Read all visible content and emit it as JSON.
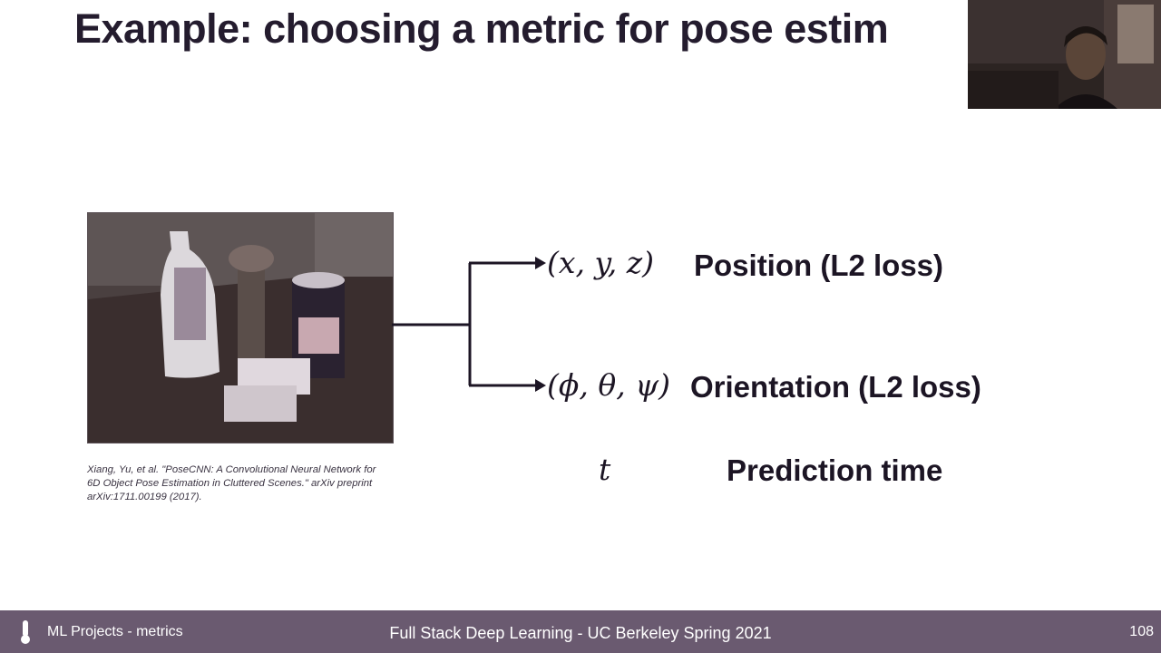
{
  "slide": {
    "title": "Example: choosing a metric for pose estim",
    "citation": "Xiang, Yu, et al. \"PoseCNN: A Convolutional Neural Network for 6D Object Pose Estimation in Cluttered Scenes.\" arXiv preprint arXiv:1711.00199 (2017).",
    "outputs": [
      {
        "math": "(x, y, z)",
        "label": "Position (L2 loss)"
      },
      {
        "math": "(ϕ, θ, ψ)",
        "label": "Orientation (L2 loss)"
      },
      {
        "math": "t",
        "label": "Prediction time"
      }
    ]
  },
  "footer": {
    "course_section": "ML Projects - metrics",
    "course_title": "Full Stack Deep Learning - UC Berkeley Spring 2021",
    "page_number": "108"
  },
  "colors": {
    "footer_bg": "#6a5a70",
    "text": "#1c1524"
  },
  "icons": {
    "footer_logo": "thermometer-icon"
  }
}
